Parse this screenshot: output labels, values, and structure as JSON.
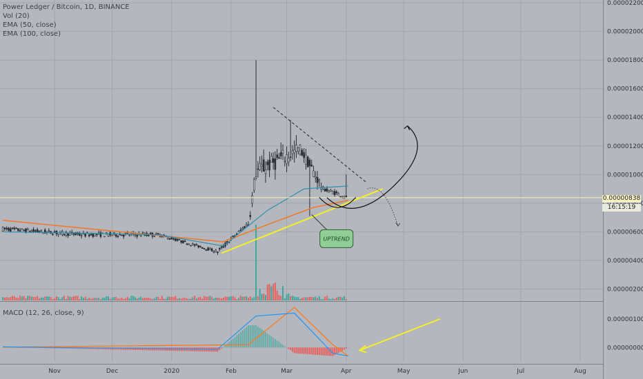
{
  "header": {
    "title": "Power Ledger / Bitcoin, 1D, BINANCE",
    "indicators": [
      "Vol (20)",
      "EMA (50, close)",
      "EMA (100, close)"
    ]
  },
  "macd": {
    "label": "MACD (12, 26, close, 9)"
  },
  "price_axis": {
    "ticks": [
      "0.00002200",
      "0.00002000",
      "0.00001800",
      "0.00001600",
      "0.00001400",
      "0.00001200",
      "0.00001000",
      "0.00000800",
      "0.00000600",
      "0.00000400",
      "0.00000200"
    ],
    "last_price": "0.00000838",
    "countdown": "16:15:19"
  },
  "macd_axis": {
    "ticks": [
      "0.00000100",
      "0.00000000"
    ]
  },
  "time_axis": {
    "labels": [
      "Nov",
      "Dec",
      "2020",
      "Feb",
      "Mar",
      "Apr",
      "May",
      "Jun",
      "Jul",
      "Aug"
    ]
  },
  "annotation": {
    "text": "UPTREND"
  },
  "colors": {
    "background": "#b4b7bd",
    "candle_up": "#3a3f45",
    "candle_down": "#2b2f34",
    "ema50": "#2e8fb0",
    "ema100": "#f07a2c",
    "trendline": "#f3f02b",
    "volume_up": "#26a69a",
    "volume_down": "#ef5350",
    "macd_line": "#2196f3",
    "signal_line": "#ff7a1a"
  },
  "chart_data": {
    "type": "candlestick",
    "symbol": "Power Ledger / Bitcoin",
    "timeframe": "1D",
    "exchange": "BINANCE",
    "y_range": [
      1.2e-06,
      2.22e-05
    ],
    "last_close": 8.38e-06,
    "segments": [
      {
        "from": "2019-10-05",
        "to": "2019-11-15",
        "price_from": 6.2e-06,
        "price_to": 5.8e-06,
        "swing": 3e-07
      },
      {
        "from": "2019-11-15",
        "to": "2019-12-25",
        "price_from": 5.8e-06,
        "price_to": 5.8e-06,
        "swing": 3e-07
      },
      {
        "from": "2019-12-25",
        "to": "2020-01-25",
        "price_from": 5.8e-06,
        "price_to": 4.6e-06,
        "swing": 2e-07
      },
      {
        "from": "2020-01-25",
        "to": "2020-02-10",
        "price_from": 4.6e-06,
        "price_to": 6.6e-06,
        "swing": 3e-07
      },
      {
        "from": "2020-02-10",
        "to": "2020-02-14",
        "price_from": 6.6e-06,
        "price_to": 1.02e-05,
        "swing": 1e-06
      },
      {
        "from": "2020-02-14",
        "to": "2020-03-08",
        "price_from": 1.02e-05,
        "price_to": 1.18e-05,
        "swing": 1.2e-06
      },
      {
        "from": "2020-03-08",
        "to": "2020-03-20",
        "price_from": 1.18e-05,
        "price_to": 9e-06,
        "swing": 8e-07
      },
      {
        "from": "2020-03-20",
        "to": "2020-04-02",
        "price_from": 9e-06,
        "price_to": 8.4e-06,
        "swing": 3e-07
      }
    ],
    "notable_highs": [
      {
        "date": "2020-02-14",
        "value": 1.8e-05
      },
      {
        "date": "2020-03-03",
        "value": 1.38e-05
      }
    ],
    "notable_lows": [
      {
        "date": "2020-03-13",
        "value": 7.1e-06
      }
    ],
    "ema50": [
      {
        "date": "2019-10-05",
        "value": 6e-06
      },
      {
        "date": "2019-12-25",
        "value": 5.8e-06
      },
      {
        "date": "2020-01-28",
        "value": 5e-06
      },
      {
        "date": "2020-02-20",
        "value": 7.5e-06
      },
      {
        "date": "2020-03-10",
        "value": 9e-06
      },
      {
        "date": "2020-04-02",
        "value": 9.2e-06
      }
    ],
    "ema100": [
      {
        "date": "2019-10-05",
        "value": 6.8e-06
      },
      {
        "date": "2020-01-28",
        "value": 5.3e-06
      },
      {
        "date": "2020-02-20",
        "value": 6.5e-06
      },
      {
        "date": "2020-03-15",
        "value": 7.7e-06
      },
      {
        "date": "2020-04-02",
        "value": 8.2e-06
      }
    ],
    "volume": {
      "spike_date": "2020-02-14",
      "pattern": "low baseline, spike mid-February"
    },
    "macd": {
      "y_range": [
        -5e-07,
        1.5e-06
      ],
      "macd_line": [
        {
          "date": "2019-10-05",
          "value": 2e-08
        },
        {
          "date": "2020-01-25",
          "value": -6e-08
        },
        {
          "date": "2020-02-14",
          "value": 1.1e-06
        },
        {
          "date": "2020-03-05",
          "value": 1.2e-06
        },
        {
          "date": "2020-03-25",
          "value": -2e-07
        },
        {
          "date": "2020-04-02",
          "value": -3e-07
        }
      ],
      "signal_line": [
        {
          "date": "2019-10-05",
          "value": 1e-08
        },
        {
          "date": "2020-02-10",
          "value": 1e-07
        },
        {
          "date": "2020-03-05",
          "value": 1.4e-06
        },
        {
          "date": "2020-03-25",
          "value": 1e-07
        },
        {
          "date": "2020-04-02",
          "value": -3e-07
        }
      ]
    },
    "drawings": [
      {
        "kind": "trendline",
        "color": "yellow",
        "from": {
          "date": "2020-01-27",
          "value": 4.5e-06
        },
        "to": {
          "date": "2020-04-20",
          "value": 9e-06
        }
      },
      {
        "kind": "dashed-line",
        "color": "black",
        "from": {
          "date": "2020-02-23",
          "value": 1.47e-05
        },
        "to": {
          "date": "2020-04-12",
          "value": 9.4e-06
        }
      },
      {
        "kind": "projection-up",
        "from": {
          "date": "2020-03-22",
          "value": 8e-06
        },
        "to": {
          "date": "2020-05-03",
          "value": 1.34e-05
        }
      },
      {
        "kind": "projection-down-dotted",
        "from": {
          "date": "2020-04-12",
          "value": 9e-06
        },
        "to": {
          "date": "2020-04-28",
          "value": 6.4e-06
        }
      },
      {
        "kind": "callout",
        "text": "UPTREND",
        "anchor": {
          "date": "2020-03-14",
          "value": 7.2e-06
        }
      },
      {
        "kind": "arrow",
        "color": "yellow",
        "from": {
          "date": "2020-05-20",
          "pane": "macd",
          "value": 1e-06
        },
        "to": {
          "date": "2020-04-08",
          "pane": "macd",
          "value": -1e-07
        }
      }
    ]
  }
}
